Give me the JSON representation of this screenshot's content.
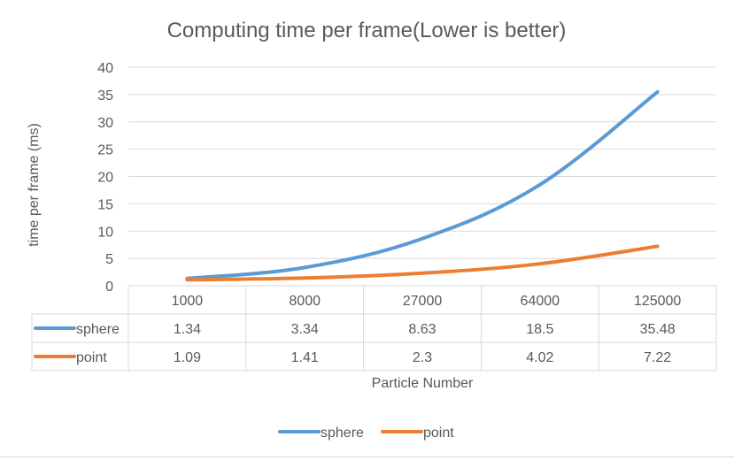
{
  "chart_data": {
    "type": "line",
    "title": "Computing time per frame(Lower is better)",
    "xlabel": "Particle Number",
    "ylabel": "time per frame (ms)",
    "categories": [
      "1000",
      "8000",
      "27000",
      "64000",
      "125000"
    ],
    "ylim": [
      0,
      40
    ],
    "yticks": [
      0,
      5,
      10,
      15,
      20,
      25,
      30,
      35,
      40
    ],
    "grid": true,
    "legend_position": "bottom",
    "data_table": true,
    "series": [
      {
        "name": "sphere",
        "color": "#5b9bd5",
        "values": [
          1.34,
          3.34,
          8.63,
          18.5,
          35.48
        ],
        "labels": [
          "1.34",
          "3.34",
          "8.63",
          "18.5",
          "35.48"
        ]
      },
      {
        "name": "point",
        "color": "#ed7d31",
        "values": [
          1.09,
          1.41,
          2.3,
          4.02,
          7.22
        ],
        "labels": [
          "1.09",
          "1.41",
          "2.3",
          "4.02",
          "7.22"
        ]
      }
    ]
  }
}
